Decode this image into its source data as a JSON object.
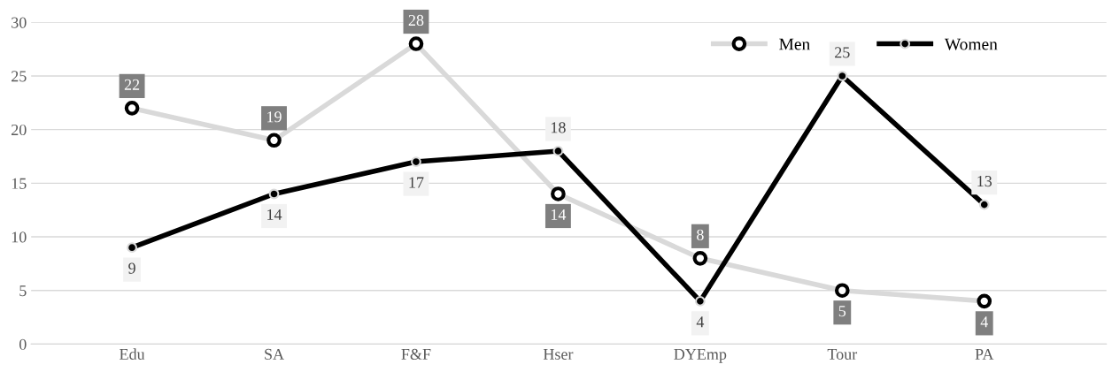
{
  "chart_data": {
    "type": "line",
    "categories": [
      "Edu",
      "SA",
      "F&F",
      "Hser",
      "DYEmp",
      "Tour",
      "PA"
    ],
    "series": [
      {
        "name": "Men",
        "color": "#d9d9d9",
        "values": [
          22,
          19,
          28,
          14,
          8,
          5,
          4
        ]
      },
      {
        "name": "Women",
        "color": "#000000",
        "values": [
          9,
          14,
          17,
          18,
          4,
          25,
          13
        ]
      }
    ],
    "ylim": [
      0,
      30
    ],
    "yticks": [
      0,
      5,
      10,
      15,
      20,
      25,
      30
    ],
    "grid": "y",
    "legend": "top right",
    "marker": "circle",
    "data_labels": true
  }
}
